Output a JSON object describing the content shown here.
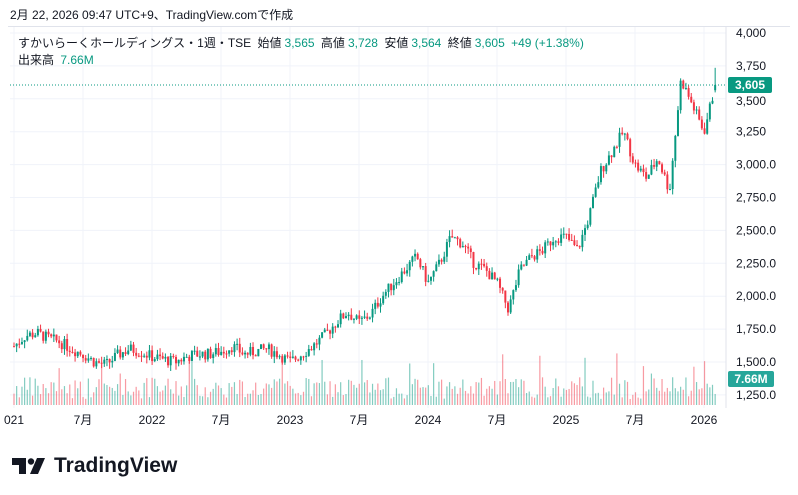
{
  "caption": "2月 22, 2026 09:47 UTC+9、TradingView.comで作成",
  "legend": {
    "symbol": "すかいらーくホールディングス・1週・TSE",
    "open_label": "始値",
    "open": "3,565",
    "high_label": "高値",
    "high": "3,728",
    "low_label": "安値",
    "low": "3,564",
    "close_label": "終値",
    "close": "3,605",
    "change": "+49 (+1.38%)",
    "volume_label": "出来高",
    "volume": "7.66M"
  },
  "logo": "TradingView",
  "colors": {
    "up": "#089981",
    "down": "#f23645",
    "grid": "#f0f3fa"
  },
  "chart_data": {
    "type": "candlestick",
    "title": "すかいらーくホールディングス・1週・TSE",
    "y_ticks": [
      "4,000",
      "3,750",
      "3,500",
      "3,250",
      "3,000.0",
      "2,750.0",
      "2,500.0",
      "2,250.0",
      "2,000.0",
      "1,750.0",
      "1,500.0",
      "1,250.0"
    ],
    "y_tick_values": [
      4000,
      3750,
      3500,
      3250,
      3000,
      2750,
      2500,
      2250,
      2000,
      1750,
      1500,
      1250
    ],
    "ylim": [
      1250,
      4000
    ],
    "x_ticks": [
      {
        "label": "021",
        "month": 0
      },
      {
        "label": "7月",
        "month": 6
      },
      {
        "label": "2022",
        "month": 12
      },
      {
        "label": "7月",
        "month": 18
      },
      {
        "label": "2023",
        "month": 24
      },
      {
        "label": "7月",
        "month": 30
      },
      {
        "label": "2024",
        "month": 36
      },
      {
        "label": "7月",
        "month": 42
      },
      {
        "label": "2025",
        "month": 48
      },
      {
        "label": "7月",
        "month": 54
      },
      {
        "label": "2026",
        "month": 60
      }
    ],
    "monthly_close_from_2021_01": [
      1620,
      1700,
      1720,
      1680,
      1650,
      1600,
      1560,
      1500,
      1480,
      1550,
      1600,
      1580,
      1540,
      1520,
      1500,
      1540,
      1560,
      1560,
      1580,
      1620,
      1560,
      1580,
      1600,
      1560,
      1500,
      1560,
      1620,
      1700,
      1800,
      1880,
      1800,
      1860,
      2000,
      2100,
      2200,
      2300,
      2100,
      2250,
      2450,
      2400,
      2250,
      2200,
      2100,
      1900,
      2200,
      2300,
      2350,
      2450,
      2450,
      2350,
      2600,
      2950,
      3100,
      3250,
      3000,
      2900,
      3050,
      2800,
      3650,
      3450,
      3250,
      3605
    ],
    "last_price": 3605,
    "last_price_label": "3,605",
    "last_volume_label": "7.66M"
  }
}
